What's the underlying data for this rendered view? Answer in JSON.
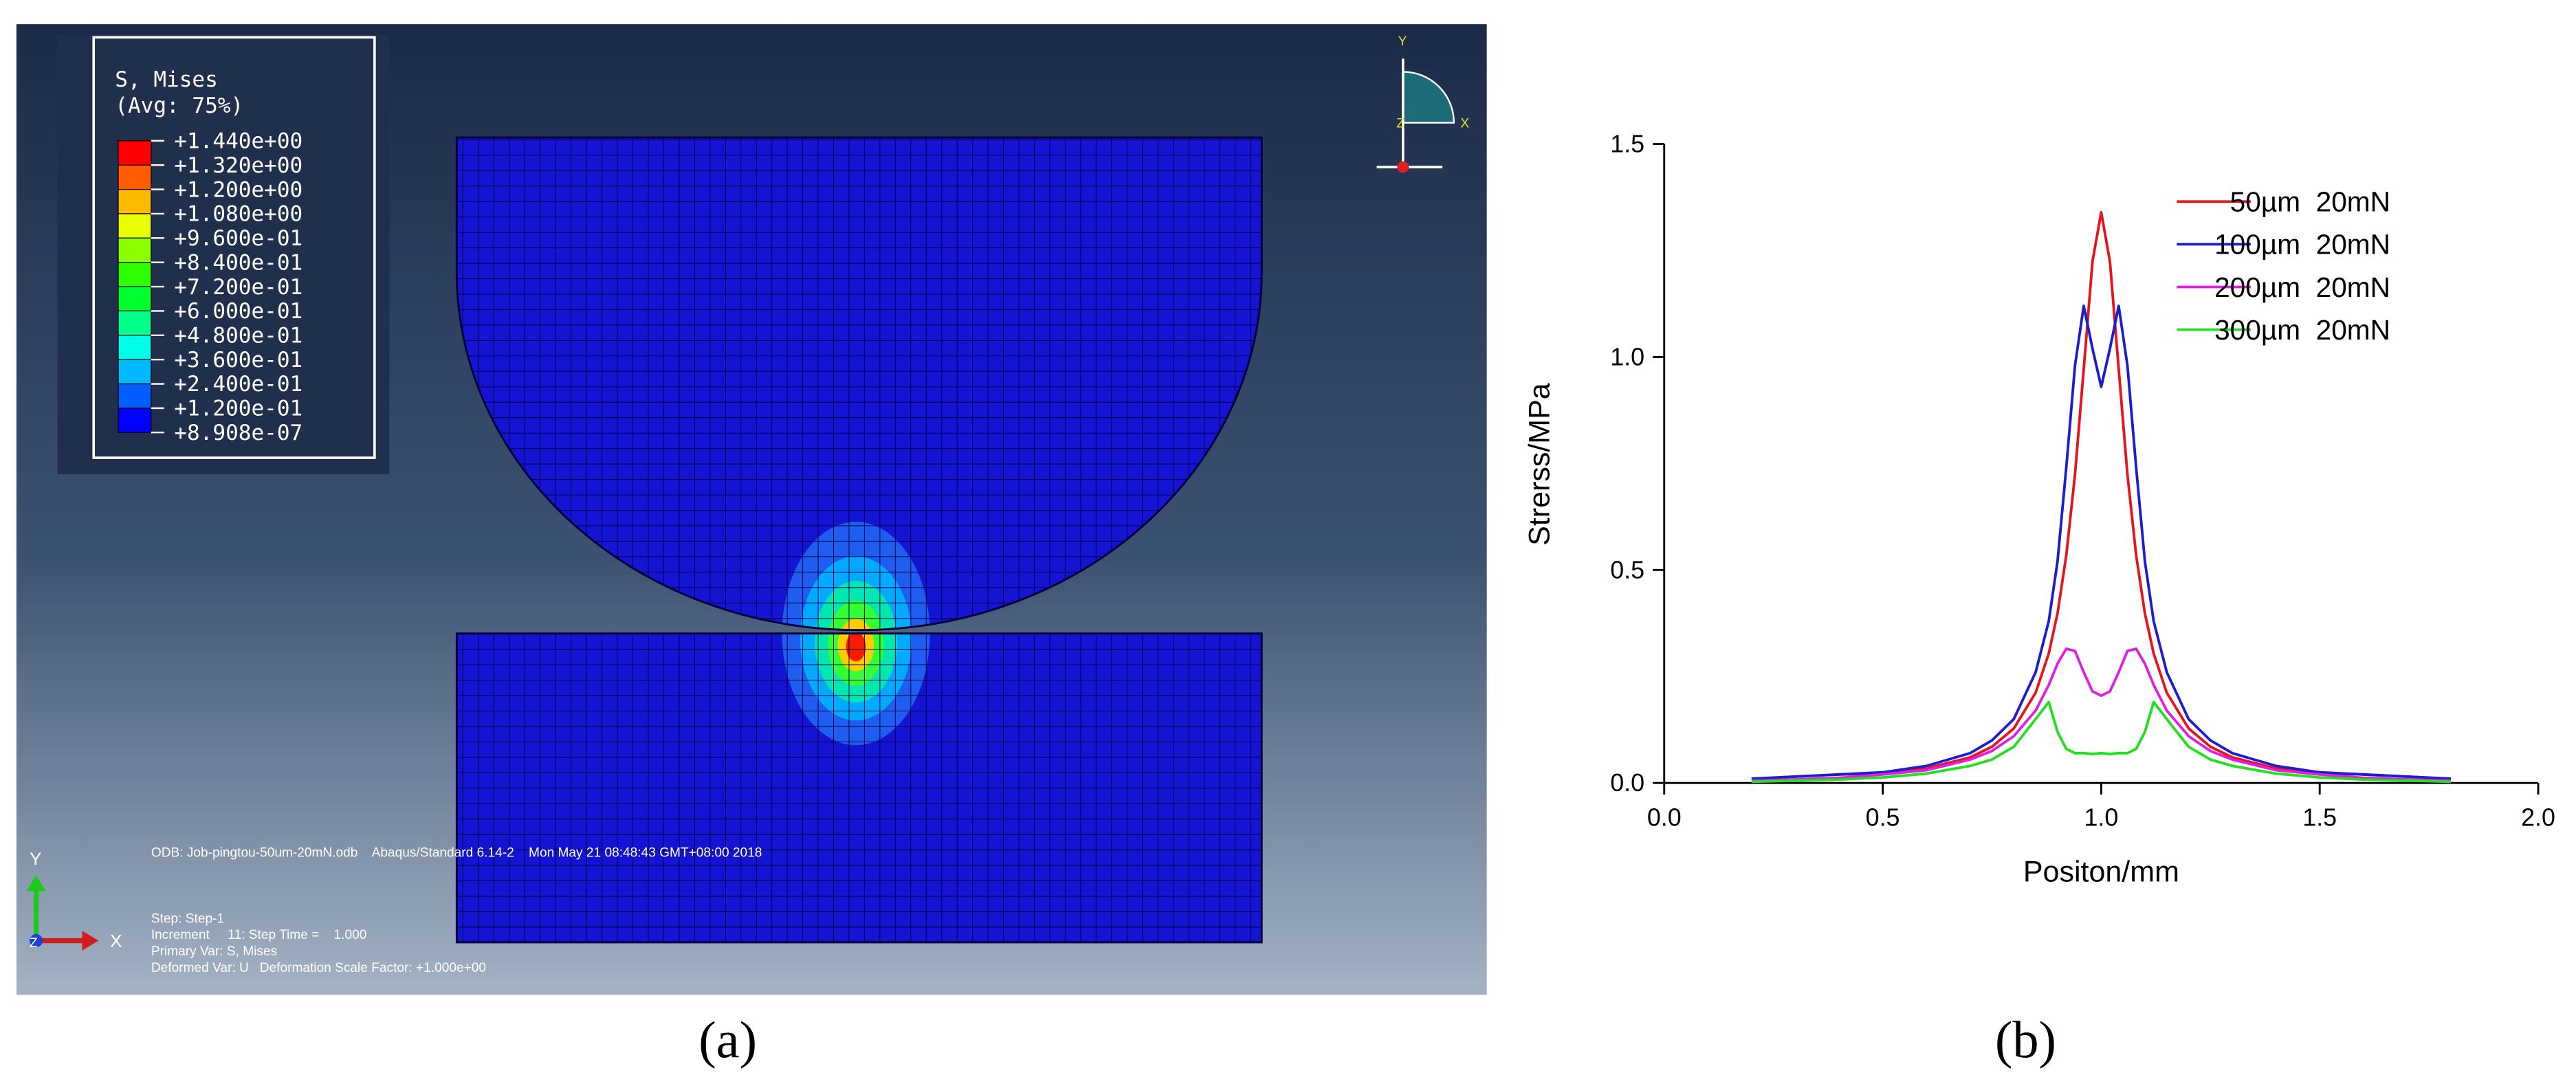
{
  "simulation": {
    "legend_title": "S, Mises",
    "legend_subtitle": "(Avg: 75%)",
    "legend_labels": [
      "+1.440e+00",
      "+1.320e+00",
      "+1.200e+00",
      "+1.080e+00",
      "+9.600e-01",
      "+8.400e-01",
      "+7.200e-01",
      "+6.000e-01",
      "+4.800e-01",
      "+3.600e-01",
      "+2.400e-01",
      "+1.200e-01",
      "+8.908e-07"
    ],
    "legend_colors": [
      "#ff0000",
      "#ff5d00",
      "#ffb900",
      "#e8ff00",
      "#8bff00",
      "#2eff00",
      "#00ff2e",
      "#00ff8b",
      "#00ffe8",
      "#00b9ff",
      "#005dff",
      "#0000ff"
    ],
    "info_lines": [
      "ODB: Job-pingtou-50um-20mN.odb    Abaqus/Standard 6.14-2    Mon May 21 08:48:43 GMT+08:00 2018",
      "Step: Step-1",
      "Increment     11: Step Time =    1.000",
      "Primary Var: S, Mises",
      "Deformed Var: U   Deformation Scale Factor: +1.000e+00"
    ],
    "triad_labels": {
      "y": "Y",
      "x": "X",
      "z": "Z"
    }
  },
  "chart_data": {
    "type": "line",
    "x_label": "Positon/mm",
    "y_label": "Strerss/MPa",
    "xlim": [
      0,
      2
    ],
    "ylim": [
      0,
      1.5
    ],
    "xticks": [
      {
        "value": 0,
        "label": "0.0"
      },
      {
        "value": 0.5,
        "label": "0.5"
      },
      {
        "value": 1,
        "label": "1.0"
      },
      {
        "value": 1.5,
        "label": "1.5"
      },
      {
        "value": 2,
        "label": "2.0"
      }
    ],
    "yticks": [
      {
        "value": 0,
        "label": "0.0"
      },
      {
        "value": 0.5,
        "label": "0.5"
      },
      {
        "value": 1,
        "label": "1.0"
      },
      {
        "value": 1.5,
        "label": "1.5"
      }
    ],
    "legend": "upper right",
    "x": [
      0.2,
      0.4,
      0.5,
      0.6,
      0.7,
      0.75,
      0.8,
      0.85,
      0.88,
      0.9,
      0.92,
      0.94,
      0.96,
      0.98,
      1.0,
      1.02,
      1.04,
      1.06,
      1.08,
      1.1,
      1.12,
      1.15,
      1.2,
      1.25,
      1.3,
      1.4,
      1.5,
      1.6,
      1.8
    ],
    "series": [
      {
        "name": "50µm  20mN",
        "color": "#e8141c",
        "values": [
          0.01,
          0.02,
          0.022,
          0.034,
          0.06,
          0.085,
          0.128,
          0.212,
          0.304,
          0.398,
          0.534,
          0.724,
          0.972,
          1.224,
          1.34,
          1.224,
          0.972,
          0.724,
          0.534,
          0.398,
          0.304,
          0.212,
          0.128,
          0.085,
          0.06,
          0.034,
          0.022,
          0.02,
          0.01
        ]
      },
      {
        "name": "100µm  20mN",
        "color": "#1c1cd0",
        "values": [
          0.01,
          0.02,
          0.025,
          0.04,
          0.07,
          0.1,
          0.15,
          0.26,
          0.38,
          0.52,
          0.74,
          0.98,
          1.12,
          1.02,
          0.93,
          1.02,
          1.12,
          0.98,
          0.74,
          0.52,
          0.38,
          0.26,
          0.15,
          0.1,
          0.07,
          0.04,
          0.025,
          0.02,
          0.01
        ]
      },
      {
        "name": "200µm  20mN",
        "color": "#e020e0",
        "values": [
          0.005,
          0.012,
          0.02,
          0.03,
          0.055,
          0.075,
          0.11,
          0.17,
          0.23,
          0.28,
          0.315,
          0.31,
          0.26,
          0.215,
          0.205,
          0.215,
          0.26,
          0.31,
          0.315,
          0.28,
          0.23,
          0.17,
          0.11,
          0.075,
          0.055,
          0.03,
          0.02,
          0.012,
          0.005
        ]
      },
      {
        "name": "300µm  20mN",
        "color": "#20e020",
        "values": [
          0.003,
          0.008,
          0.013,
          0.022,
          0.04,
          0.055,
          0.085,
          0.15,
          0.19,
          0.12,
          0.08,
          0.07,
          0.07,
          0.068,
          0.07,
          0.068,
          0.07,
          0.07,
          0.08,
          0.12,
          0.19,
          0.15,
          0.085,
          0.055,
          0.04,
          0.022,
          0.013,
          0.008,
          0.003
        ]
      }
    ]
  },
  "captions": {
    "a": "(a)",
    "b": "(b)"
  }
}
